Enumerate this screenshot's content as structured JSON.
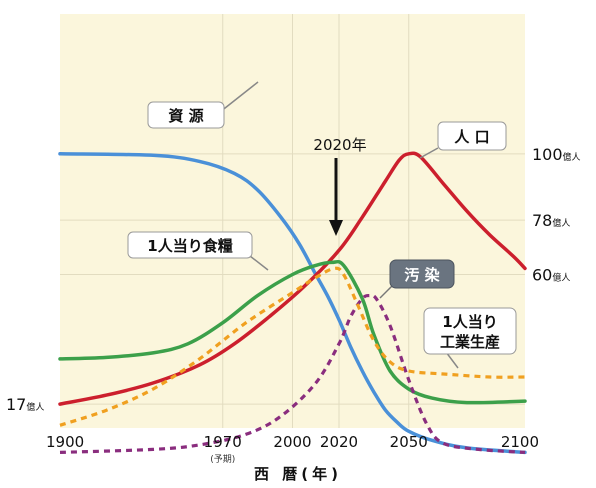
{
  "chart_data": {
    "type": "line",
    "xlabel": "西 暦(年)",
    "xlim": [
      1900,
      2100
    ],
    "x_ticks": [
      {
        "value": 1900,
        "label": "1900",
        "sublabel": ""
      },
      {
        "value": 1970,
        "label": "1970",
        "sublabel": "(予期)"
      },
      {
        "value": 2000,
        "label": "2000",
        "sublabel": ""
      },
      {
        "value": 2020,
        "label": "2020",
        "sublabel": ""
      },
      {
        "value": 2050,
        "label": "2050",
        "sublabel": ""
      },
      {
        "value": 2100,
        "label": "2100",
        "sublabel": ""
      }
    ],
    "y_labels": [
      {
        "value": 100,
        "num": "100",
        "unit": "億人"
      },
      {
        "value": 78,
        "num": "78",
        "unit": "億人"
      },
      {
        "value": 60,
        "num": "60",
        "unit": "億人"
      },
      {
        "value": 17,
        "num": "17",
        "unit": "億人"
      }
    ],
    "grid": true,
    "series": [
      {
        "name": "資 源",
        "color": "#4a90d8",
        "dash": "solid",
        "points": [
          [
            1900,
            100
          ],
          [
            1940,
            99.5
          ],
          [
            1960,
            97.5
          ],
          [
            1975,
            93.5
          ],
          [
            1985,
            88
          ],
          [
            1995,
            79
          ],
          [
            2003,
            70
          ],
          [
            2010,
            60
          ],
          [
            2015,
            53
          ],
          [
            2020,
            45
          ],
          [
            2025,
            36
          ],
          [
            2030,
            28
          ],
          [
            2035,
            21
          ],
          [
            2040,
            15
          ],
          [
            2045,
            11
          ],
          [
            2050,
            8
          ],
          [
            2060,
            5
          ],
          [
            2075,
            2.5
          ],
          [
            2100,
            1
          ]
        ]
      },
      {
        "name": "人 口",
        "color": "#cc1f2d",
        "dash": "solid",
        "points": [
          [
            1900,
            17
          ],
          [
            1920,
            20
          ],
          [
            1940,
            24
          ],
          [
            1960,
            30
          ],
          [
            1975,
            37
          ],
          [
            1990,
            46
          ],
          [
            2005,
            56
          ],
          [
            2020,
            68
          ],
          [
            2030,
            79
          ],
          [
            2040,
            91
          ],
          [
            2046,
            98
          ],
          [
            2050,
            100
          ],
          [
            2055,
            99
          ],
          [
            2065,
            90
          ],
          [
            2075,
            81
          ],
          [
            2085,
            73
          ],
          [
            2095,
            66
          ],
          [
            2100,
            62
          ]
        ]
      },
      {
        "name": "1人当り食糧",
        "color": "#3ca04a",
        "dash": "solid",
        "points": [
          [
            1900,
            32
          ],
          [
            1920,
            32.5
          ],
          [
            1940,
            34
          ],
          [
            1955,
            37
          ],
          [
            1970,
            44
          ],
          [
            1985,
            53
          ],
          [
            2000,
            60
          ],
          [
            2010,
            63
          ],
          [
            2017,
            64
          ],
          [
            2022,
            63
          ],
          [
            2030,
            52
          ],
          [
            2035,
            40
          ],
          [
            2042,
            28
          ],
          [
            2050,
            22
          ],
          [
            2060,
            19
          ],
          [
            2075,
            17.5
          ],
          [
            2100,
            18
          ]
        ]
      },
      {
        "name": "汚 染",
        "color": "#8a2d7e",
        "dash": "dashed",
        "points": [
          [
            1900,
            1
          ],
          [
            1940,
            2
          ],
          [
            1960,
            3.5
          ],
          [
            1980,
            7
          ],
          [
            1995,
            13
          ],
          [
            2010,
            24
          ],
          [
            2020,
            37
          ],
          [
            2025,
            46
          ],
          [
            2030,
            52
          ],
          [
            2033,
            53
          ],
          [
            2036,
            52
          ],
          [
            2042,
            43
          ],
          [
            2050,
            25
          ],
          [
            2058,
            10
          ],
          [
            2065,
            4
          ],
          [
            2080,
            2
          ],
          [
            2100,
            1
          ]
        ]
      },
      {
        "name": "1人当り工業生産",
        "color": "#f0a020",
        "dash": "dashed",
        "points": [
          [
            1900,
            10
          ],
          [
            1920,
            15
          ],
          [
            1940,
            22
          ],
          [
            1960,
            32
          ],
          [
            1980,
            44
          ],
          [
            2000,
            54
          ],
          [
            2010,
            59
          ],
          [
            2018,
            62
          ],
          [
            2022,
            60
          ],
          [
            2028,
            50
          ],
          [
            2035,
            38
          ],
          [
            2042,
            31
          ],
          [
            2050,
            28
          ],
          [
            2065,
            27
          ],
          [
            2085,
            26
          ],
          [
            2100,
            26
          ]
        ]
      }
    ],
    "annotations": {
      "resource": "資 源",
      "population": "人 口",
      "food": "1人当り食糧",
      "pollution": "汚 染",
      "industry_line1": "1人当り",
      "industry_line2": "工業生産",
      "marker_2020": "2020年"
    }
  }
}
